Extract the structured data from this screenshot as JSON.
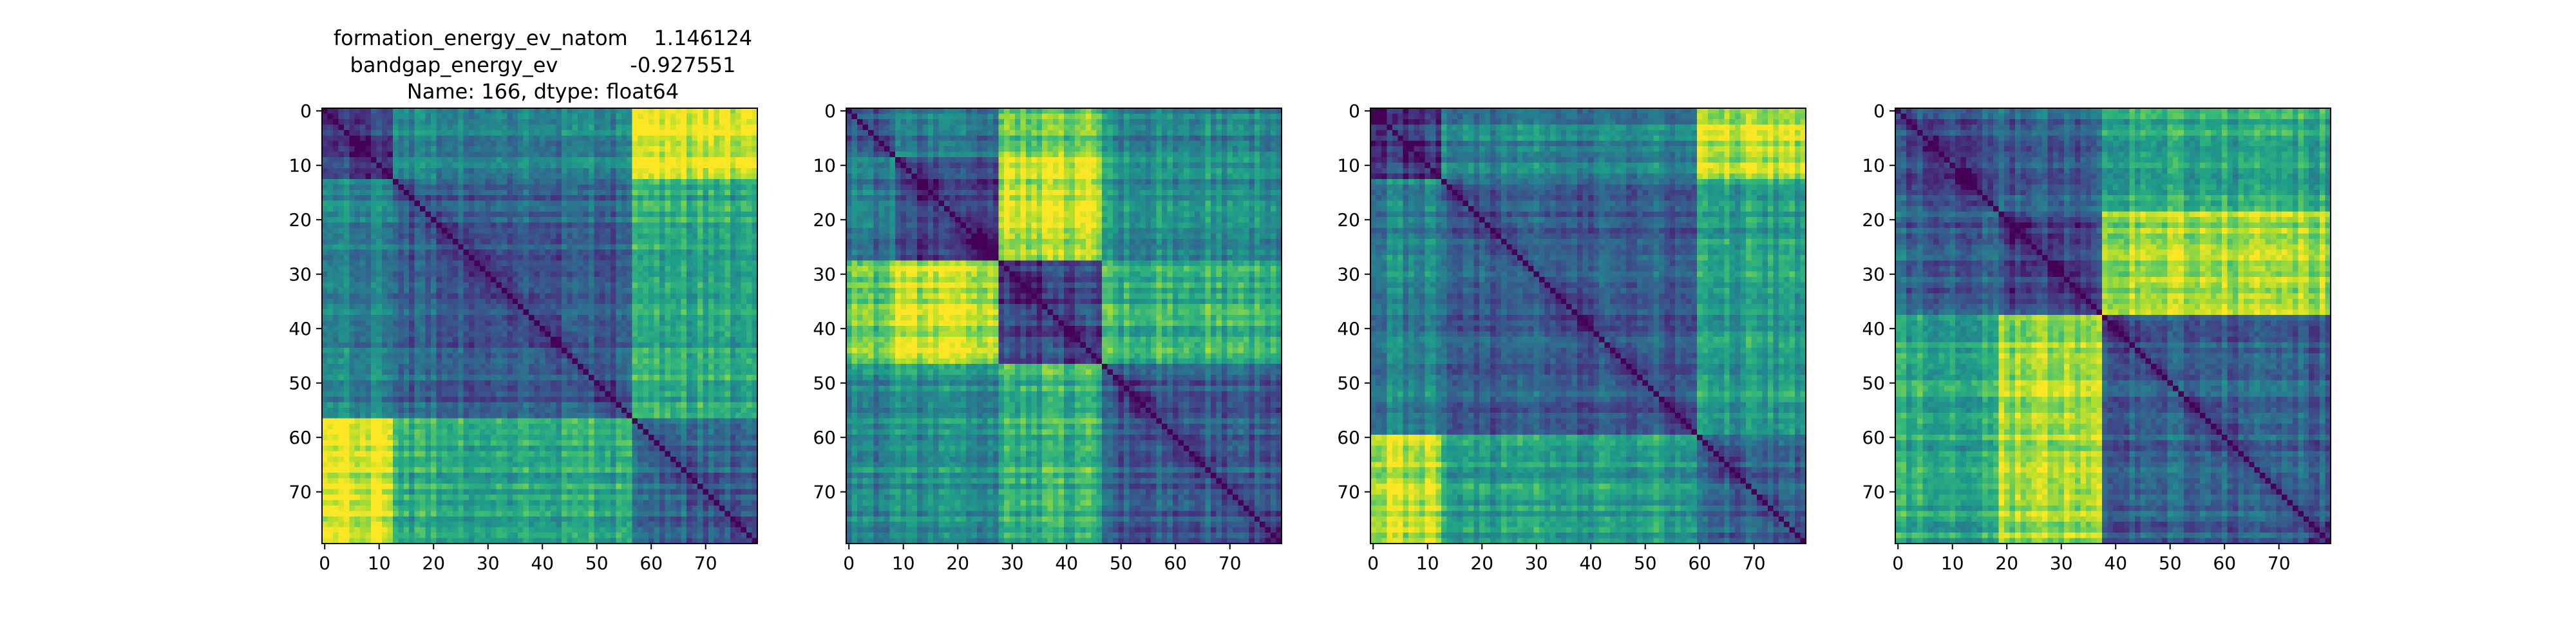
{
  "figure": {
    "title_lines": [
      "formation_energy_ev_natom    1.146124",
      "bandgap_energy_ev           -0.927551",
      "Name: 166, dtype: float64"
    ]
  },
  "colormap": {
    "name": "viridis",
    "low": "#440154",
    "mid": "#21918c",
    "high": "#fde725"
  },
  "chart_data": [
    {
      "type": "heatmap",
      "title": "formation_energy_ev_natom    1.146124\nbandgap_energy_ev           -0.927551\nName: 166, dtype: float64",
      "size": 80,
      "xlim": [
        -0.5,
        79.5
      ],
      "ylim": [
        79.5,
        -0.5
      ],
      "xticks": [
        0,
        10,
        20,
        30,
        40,
        50,
        60,
        70
      ],
      "yticks": [
        0,
        10,
        20,
        30,
        40,
        50,
        60,
        70
      ],
      "grid": false,
      "value_range": [
        0,
        1
      ],
      "blocks": [
        [
          0,
          13
        ],
        [
          13,
          57
        ],
        [
          57,
          80
        ]
      ],
      "block_distance": [
        [
          0.2,
          0.45,
          0.95
        ],
        [
          0.45,
          0.3,
          0.6
        ],
        [
          0.95,
          0.6,
          0.3
        ]
      ],
      "diagonal": 0
    },
    {
      "type": "heatmap",
      "size": 80,
      "xlim": [
        -0.5,
        79.5
      ],
      "ylim": [
        79.5,
        -0.5
      ],
      "xticks": [
        0,
        10,
        20,
        30,
        40,
        50,
        60,
        70
      ],
      "yticks": [
        0,
        10,
        20,
        30,
        40,
        50,
        60,
        70
      ],
      "grid": false,
      "value_range": [
        0,
        1
      ],
      "blocks": [
        [
          0,
          9
        ],
        [
          9,
          28
        ],
        [
          28,
          47
        ],
        [
          47,
          80
        ]
      ],
      "block_distance": [
        [
          0.3,
          0.4,
          0.75,
          0.45
        ],
        [
          0.4,
          0.2,
          0.9,
          0.5
        ],
        [
          0.75,
          0.9,
          0.2,
          0.65
        ],
        [
          0.45,
          0.5,
          0.65,
          0.3
        ]
      ],
      "diagonal": 0
    },
    {
      "type": "heatmap",
      "size": 80,
      "xlim": [
        -0.5,
        79.5
      ],
      "ylim": [
        79.5,
        -0.5
      ],
      "xticks": [
        0,
        10,
        20,
        30,
        40,
        50,
        60,
        70
      ],
      "yticks": [
        0,
        10,
        20,
        30,
        40,
        50,
        60,
        70
      ],
      "grid": false,
      "value_range": [
        0,
        1
      ],
      "blocks": [
        [
          0,
          13
        ],
        [
          13,
          60
        ],
        [
          60,
          80
        ]
      ],
      "block_distance": [
        [
          0.2,
          0.45,
          0.9
        ],
        [
          0.45,
          0.3,
          0.55
        ],
        [
          0.9,
          0.55,
          0.3
        ]
      ],
      "diagonal": 0
    },
    {
      "type": "heatmap",
      "size": 80,
      "xlim": [
        -0.5,
        79.5
      ],
      "ylim": [
        79.5,
        -0.5
      ],
      "xticks": [
        0,
        10,
        20,
        30,
        40,
        50,
        60,
        70
      ],
      "yticks": [
        0,
        10,
        20,
        30,
        40,
        50,
        60,
        70
      ],
      "grid": false,
      "value_range": [
        0,
        1
      ],
      "blocks": [
        [
          0,
          19
        ],
        [
          19,
          38
        ],
        [
          38,
          80
        ]
      ],
      "block_distance": [
        [
          0.25,
          0.3,
          0.6
        ],
        [
          0.3,
          0.2,
          0.85
        ],
        [
          0.6,
          0.85,
          0.3
        ]
      ],
      "diagonal": 0
    }
  ]
}
